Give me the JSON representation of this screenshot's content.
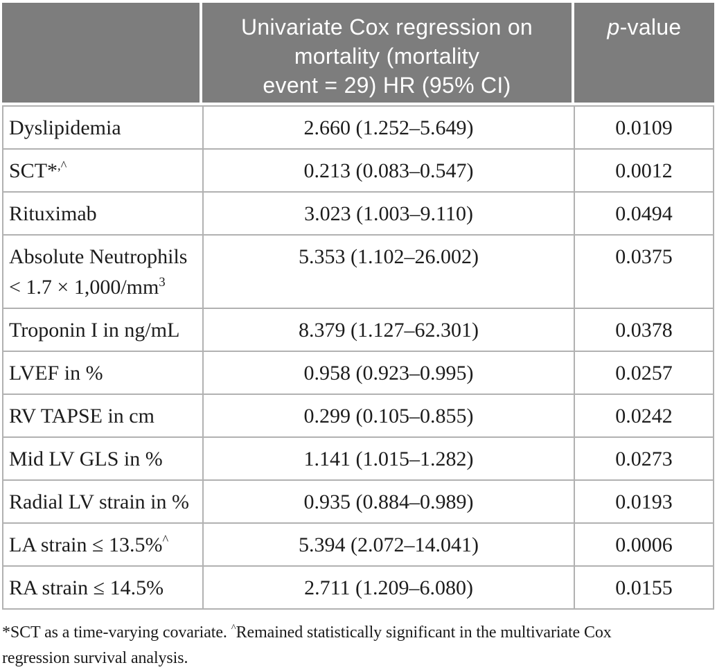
{
  "table": {
    "header": {
      "col1": "",
      "col2": "Univariate Cox regression on\nmortality (mortality\nevent = 29) HR (95% CI)",
      "col3_segments": [
        {
          "t": "p",
          "italic": true
        },
        {
          "t": "-value"
        }
      ]
    },
    "rows": [
      {
        "label": [
          {
            "t": "Dyslipidemia"
          }
        ],
        "hr": "2.660 (1.252–5.649)",
        "p": "0.0109"
      },
      {
        "label": [
          {
            "t": "SCT*"
          },
          {
            "t": ",^",
            "sup": true
          }
        ],
        "hr": "0.213 (0.083–0.547)",
        "p": "0.0012"
      },
      {
        "label": [
          {
            "t": "Rituximab"
          }
        ],
        "hr": "3.023 (1.003–9.110)",
        "p": "0.0494"
      },
      {
        "label": [
          {
            "t": "Absolute Neutrophils < 1.7 × 1,000/mm"
          },
          {
            "t": "3",
            "sup": true
          }
        ],
        "hr": "5.353 (1.102–26.002)",
        "p": "0.0375"
      },
      {
        "label": [
          {
            "t": "Troponin I in ng/mL"
          }
        ],
        "hr": "8.379 (1.127–62.301)",
        "p": "0.0378"
      },
      {
        "label": [
          {
            "t": "LVEF in %"
          }
        ],
        "hr": "0.958 (0.923–0.995)",
        "p": "0.0257"
      },
      {
        "label": [
          {
            "t": "RV TAPSE in cm"
          }
        ],
        "hr": "0.299 (0.105–0.855)",
        "p": "0.0242"
      },
      {
        "label": [
          {
            "t": "Mid LV GLS in %"
          }
        ],
        "hr": "1.141 (1.015–1.282)",
        "p": "0.0273"
      },
      {
        "label": [
          {
            "t": "Radial LV strain in %"
          }
        ],
        "hr": "0.935 (0.884–0.989)",
        "p": "0.0193"
      },
      {
        "label": [
          {
            "t": "LA strain ≤ 13.5%"
          },
          {
            "t": "^",
            "sup": true
          }
        ],
        "hr": "5.394 (2.072–14.041)",
        "p": "0.0006"
      },
      {
        "label": [
          {
            "t": "RA strain ≤ 14.5%"
          }
        ],
        "hr": "2.711 (1.209–6.080)",
        "p": "0.0155"
      }
    ]
  },
  "footnote": {
    "segments": [
      {
        "t": "*SCT as a time-varying covariate. "
      },
      {
        "t": "^",
        "sup": true
      },
      {
        "t": "Remained statistically significant in the multivariate Cox\nregression survival analysis."
      }
    ]
  },
  "colors": {
    "header_bg": "#7d7d7d",
    "header_text": "#ffffff",
    "border": "#b1b1b1",
    "body_text": "#1c1c1c"
  }
}
